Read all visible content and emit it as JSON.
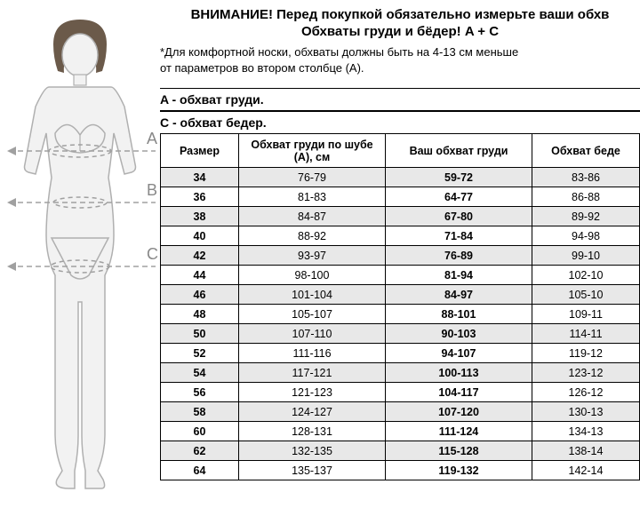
{
  "headline": "ВНИМАНИЕ! Перед покупкой обязательно измерьте ваши обхв",
  "subhead": "Обхваты груди и бёдер! A + C",
  "note_line1": "*Для комфортной носки, обхваты должны быть на 4-13 см меньше",
  "note_line2": "от параметров во втором столбце (A).",
  "section_a": "A - обхват груди.",
  "section_c": "C - обхват бедер.",
  "labels": {
    "A": "A",
    "B": "B",
    "C": "C"
  },
  "columns": [
    "Размер",
    "Обхват груди по шубе (A), см",
    "Ваш обхват груди",
    "Обхват беде"
  ],
  "rows": [
    [
      "34",
      "76-79",
      "59-72",
      "83-86"
    ],
    [
      "36",
      "81-83",
      "64-77",
      "86-88"
    ],
    [
      "38",
      "84-87",
      "67-80",
      "89-92"
    ],
    [
      "40",
      "88-92",
      "71-84",
      "94-98"
    ],
    [
      "42",
      "93-97",
      "76-89",
      "99-10"
    ],
    [
      "44",
      "98-100",
      "81-94",
      "102-10"
    ],
    [
      "46",
      "101-104",
      "84-97",
      "105-10"
    ],
    [
      "48",
      "105-107",
      "88-101",
      "109-11"
    ],
    [
      "50",
      "107-110",
      "90-103",
      "114-11"
    ],
    [
      "52",
      "111-116",
      "94-107",
      "119-12"
    ],
    [
      "54",
      "117-121",
      "100-113",
      "123-12"
    ],
    [
      "56",
      "121-123",
      "104-117",
      "126-12"
    ],
    [
      "58",
      "124-127",
      "107-120",
      "130-13"
    ],
    [
      "60",
      "128-131",
      "111-124",
      "134-13"
    ],
    [
      "62",
      "132-135",
      "115-128",
      "138-14"
    ],
    [
      "64",
      "135-137",
      "119-132",
      "142-14"
    ]
  ],
  "colors": {
    "figure_outline": "#b0b0b0",
    "figure_fill": "#f2f2f2",
    "hair": "#6b5a4a",
    "line": "#a0a0a0",
    "row_alt": "#e8e8e8",
    "text_gray": "#888888"
  }
}
